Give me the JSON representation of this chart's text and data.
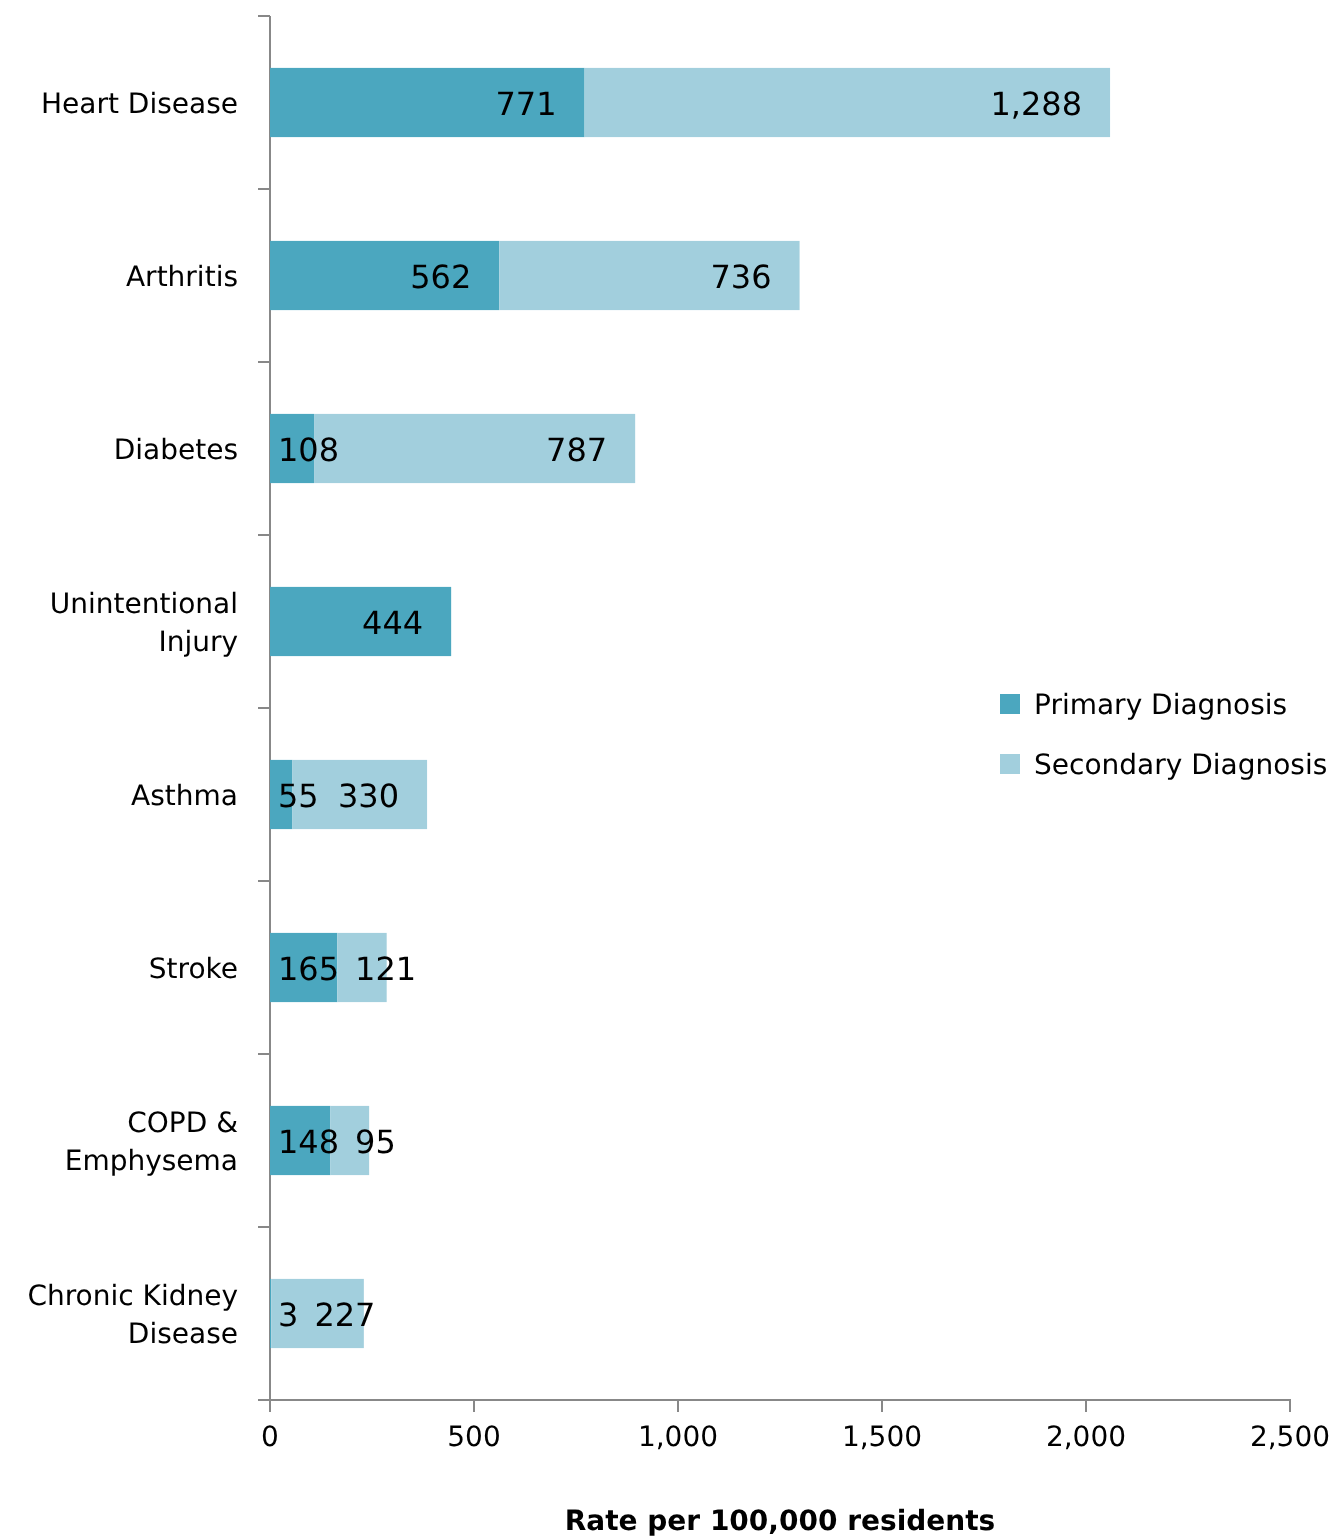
{
  "chart_data": {
    "type": "bar",
    "orientation": "horizontal",
    "stacked": true,
    "categories": [
      "Heart Disease",
      "Arthritis",
      "Diabetes",
      "Unintentional Injury",
      "Asthma",
      "Stroke",
      "COPD & Emphysema",
      "Chronic Kidney Disease"
    ],
    "series": [
      {
        "name": "Primary Diagnosis",
        "color": "#4ba7bf",
        "values": [
          771,
          562,
          108,
          444,
          55,
          165,
          148,
          3
        ],
        "value_labels": [
          "771",
          "562",
          "108",
          "444",
          "55",
          "165",
          "148",
          "3"
        ]
      },
      {
        "name": "Secondary Diagnosis",
        "color": "#a2cfdd",
        "values": [
          1288,
          736,
          787,
          null,
          330,
          121,
          95,
          227
        ],
        "value_labels": [
          "1,288",
          "736",
          "787",
          null,
          "330",
          "121",
          "95",
          "227"
        ]
      }
    ],
    "xlim": [
      0,
      2500
    ],
    "xticks": [
      0,
      500,
      {
        "value": 1000,
        "label": "1,000"
      },
      {
        "value": 1500,
        "label": "1,500"
      },
      {
        "value": 2000,
        "label": "2,000"
      },
      {
        "value": 2500,
        "label": "2,500"
      }
    ],
    "xlabel": "Rate per 100,000 residents",
    "grid": false,
    "legend": "right"
  }
}
